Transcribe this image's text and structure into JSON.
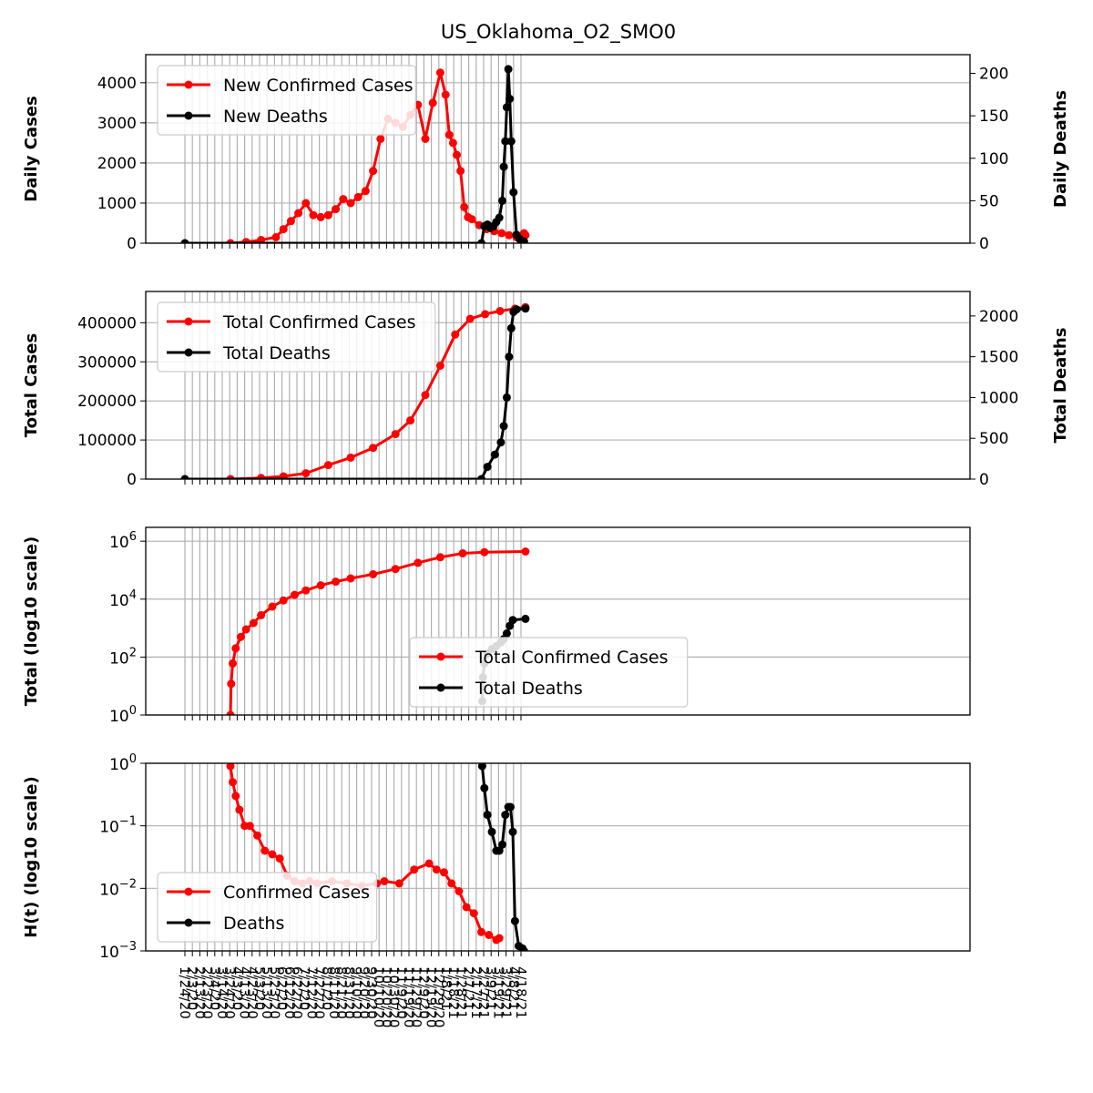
{
  "figure_title": "US_Oklahoma_O2_SMO0",
  "colors": {
    "confirmed": "#ff0000",
    "deaths": "#000000",
    "grid": "#b0b0b0"
  },
  "date_labels": [
    "1/24/20",
    "2/3/20",
    "2/13/20",
    "2/23/20",
    "3/4/20",
    "3/14/20",
    "3/24/20",
    "4/3/20",
    "4/13/20",
    "4/23/20",
    "5/3/20",
    "5/13/20",
    "5/23/20",
    "6/2/20",
    "6/12/20",
    "6/22/20",
    "7/2/20",
    "7/12/20",
    "7/22/20",
    "8/1/20",
    "8/11/20",
    "8/21/20",
    "8/31/20",
    "9/10/20",
    "9/20/20",
    "9/30/20",
    "10/10/20",
    "10/20/20",
    "10/30/20",
    "11/9/20",
    "11/19/20",
    "11/29/20",
    "12/9/20",
    "12/19/20",
    "12/29/20",
    "1/8/21",
    "1/18/21",
    "1/28/21",
    "2/7/21",
    "2/17/21",
    "2/27/21",
    "3/9/21",
    "3/19/21",
    "3/29/21",
    "4/8/21",
    "4/18/21"
  ],
  "chart_data": [
    {
      "type": "line",
      "ylabel": "Daily Cases",
      "ylabel_right": "Daily Deaths",
      "ylim": [
        0,
        4700
      ],
      "yticks": [
        0,
        1000,
        2000,
        3000,
        4000
      ],
      "ylim_right": [
        0,
        222
      ],
      "yticks_right": [
        0,
        50,
        100,
        150,
        200
      ],
      "legend_location": "upper left",
      "series": [
        {
          "name": "New Confirmed Cases",
          "axis": "left",
          "x": [
            "1/24/20",
            "3/25/20",
            "4/15/20",
            "5/5/20",
            "5/25/20",
            "6/4/20",
            "6/14/20",
            "6/24/20",
            "7/4/20",
            "7/14/20",
            "7/24/20",
            "8/3/20",
            "8/13/20",
            "8/23/20",
            "9/2/20",
            "9/12/20",
            "9/22/20",
            "10/2/20",
            "10/12/20",
            "10/22/20",
            "11/1/20",
            "11/11/20",
            "11/21/20",
            "12/1/20",
            "12/11/20",
            "12/21/20",
            "12/31/20",
            "1/7/21",
            "1/12/21",
            "1/17/21",
            "1/22/21",
            "1/27/21",
            "2/1/21",
            "2/6/21",
            "2/11/21",
            "2/21/21",
            "3/3/21",
            "3/13/21",
            "3/23/21",
            "4/2/21",
            "4/12/21",
            "4/22/21",
            "4/24/21"
          ],
          "y": [
            0,
            0,
            30,
            80,
            150,
            350,
            550,
            750,
            1000,
            700,
            650,
            700,
            850,
            1100,
            1000,
            1150,
            1300,
            1800,
            2600,
            3100,
            3000,
            2900,
            3200,
            3450,
            2600,
            3500,
            4250,
            3700,
            2700,
            2500,
            2200,
            1800,
            900,
            650,
            600,
            450,
            350,
            300,
            250,
            200,
            150,
            250,
            200
          ]
        },
        {
          "name": "New Deaths",
          "axis": "right",
          "x": [
            "1/24/20",
            "2/24/21",
            "2/28/21",
            "3/4/21",
            "3/8/21",
            "3/12/21",
            "3/16/21",
            "3/20/21",
            "3/24/21",
            "3/26/21",
            "3/28/21",
            "3/30/21",
            "4/1/21",
            "4/3/21",
            "4/5/21",
            "4/8/21",
            "4/12/21",
            "4/16/21",
            "4/22/21"
          ],
          "y": [
            0,
            0,
            20,
            22,
            18,
            20,
            25,
            30,
            50,
            90,
            120,
            160,
            205,
            170,
            120,
            60,
            10,
            5,
            2
          ]
        }
      ]
    },
    {
      "type": "line",
      "ylabel": "Total Cases",
      "ylabel_right": "Total Deaths",
      "ylim": [
        0,
        480000
      ],
      "yticks": [
        0,
        100000,
        200000,
        300000,
        400000
      ],
      "ylim_right": [
        0,
        2300
      ],
      "yticks_right": [
        0,
        500,
        1000,
        1500,
        2000
      ],
      "legend_location": "upper left",
      "series": [
        {
          "name": "Total Confirmed Cases",
          "axis": "left",
          "x": [
            "1/24/20",
            "3/25/20",
            "5/5/20",
            "6/4/20",
            "7/4/20",
            "8/3/20",
            "9/2/20",
            "10/2/20",
            "11/1/20",
            "11/21/20",
            "12/11/20",
            "12/31/20",
            "1/20/21",
            "2/9/21",
            "3/1/21",
            "3/21/21",
            "4/10/21",
            "4/24/21"
          ],
          "y": [
            0,
            0,
            3000,
            7000,
            15000,
            36000,
            55000,
            80000,
            115000,
            150000,
            215000,
            290000,
            370000,
            410000,
            422000,
            430000,
            436000,
            440000
          ]
        },
        {
          "name": "Total Deaths",
          "axis": "right",
          "x": [
            "1/24/20",
            "2/24/21",
            "3/4/21",
            "3/14/21",
            "3/22/21",
            "3/26/21",
            "3/30/21",
            "4/2/21",
            "4/5/21",
            "4/8/21",
            "4/12/21",
            "4/24/21"
          ],
          "y": [
            0,
            0,
            150,
            300,
            450,
            650,
            1000,
            1500,
            1850,
            2050,
            2080,
            2090
          ]
        }
      ]
    },
    {
      "type": "line",
      "ylabel": "Total (log10 scale)",
      "yscale": "log",
      "ylim": [
        1,
        3000000
      ],
      "yticks": [
        1,
        100,
        10000,
        1000000
      ],
      "ytick_labels": [
        "10^0",
        "10^2",
        "10^4",
        "10^6"
      ],
      "legend_location": "lower center",
      "series": [
        {
          "name": "Total Confirmed Cases",
          "x": [
            "3/25/20",
            "3/26/20",
            "3/28/20",
            "4/1/20",
            "4/8/20",
            "4/15/20",
            "4/25/20",
            "5/5/20",
            "5/20/20",
            "6/4/20",
            "6/19/20",
            "7/4/20",
            "7/24/20",
            "8/13/20",
            "9/2/20",
            "10/2/20",
            "11/1/20",
            "12/1/20",
            "12/31/20",
            "1/30/21",
            "2/28/21",
            "4/24/21"
          ],
          "y": [
            1,
            12,
            60,
            200,
            500,
            900,
            1500,
            2800,
            5500,
            9000,
            14000,
            20000,
            30000,
            40000,
            52000,
            72000,
            110000,
            180000,
            280000,
            380000,
            420000,
            440000
          ]
        },
        {
          "name": "Total Deaths",
          "x": [
            "2/25/21",
            "2/26/21",
            "2/28/21",
            "3/4/21",
            "3/10/21",
            "3/16/21",
            "3/22/21",
            "3/26/21",
            "3/30/21",
            "4/3/21",
            "4/7/21",
            "4/24/21"
          ],
          "y": [
            3,
            20,
            60,
            130,
            190,
            240,
            320,
            420,
            650,
            1200,
            1900,
            2090
          ]
        }
      ]
    },
    {
      "type": "line",
      "ylabel": "H(t) (log10 scale)",
      "yscale": "log",
      "ylim": [
        0.001,
        1
      ],
      "yticks": [
        0.001,
        0.01,
        0.1,
        1
      ],
      "ytick_labels": [
        "10^−3",
        "10^−2",
        "10^−1",
        "10^0"
      ],
      "legend_location": "lower left",
      "series": [
        {
          "name": "Confirmed Cases",
          "x": [
            "3/25/20",
            "3/28/20",
            "4/1/20",
            "4/6/20",
            "4/13/20",
            "4/20/20",
            "4/30/20",
            "5/10/20",
            "5/20/20",
            "5/30/20",
            "6/9/20",
            "6/19/20",
            "6/29/20",
            "7/9/20",
            "7/19/20",
            "8/8/20",
            "8/28/20",
            "9/17/20",
            "10/7/20",
            "10/17/20",
            "11/6/20",
            "11/26/20",
            "12/16/20",
            "12/26/20",
            "1/5/21",
            "1/15/21",
            "1/25/21",
            "2/4/21",
            "2/14/21",
            "2/24/21",
            "3/6/21",
            "3/16/21",
            "3/20/21"
          ],
          "y": [
            0.9,
            0.5,
            0.3,
            0.18,
            0.1,
            0.1,
            0.07,
            0.04,
            0.035,
            0.03,
            0.016,
            0.013,
            0.012,
            0.013,
            0.012,
            0.013,
            0.012,
            0.011,
            0.012,
            0.013,
            0.012,
            0.02,
            0.025,
            0.02,
            0.018,
            0.012,
            0.009,
            0.005,
            0.004,
            0.002,
            0.0018,
            0.0015,
            0.0016
          ]
        },
        {
          "name": "Deaths",
          "x": [
            "2/25/21",
            "2/28/21",
            "3/4/21",
            "3/10/21",
            "3/16/21",
            "3/20/21",
            "3/24/21",
            "3/28/21",
            "4/1/21",
            "4/4/21",
            "4/7/21",
            "4/10/21",
            "4/15/21",
            "4/20/21",
            "4/22/21"
          ],
          "y": [
            0.9,
            0.4,
            0.15,
            0.08,
            0.04,
            0.04,
            0.05,
            0.15,
            0.2,
            0.2,
            0.08,
            0.003,
            0.0012,
            0.0011,
            0.001
          ]
        }
      ]
    }
  ]
}
